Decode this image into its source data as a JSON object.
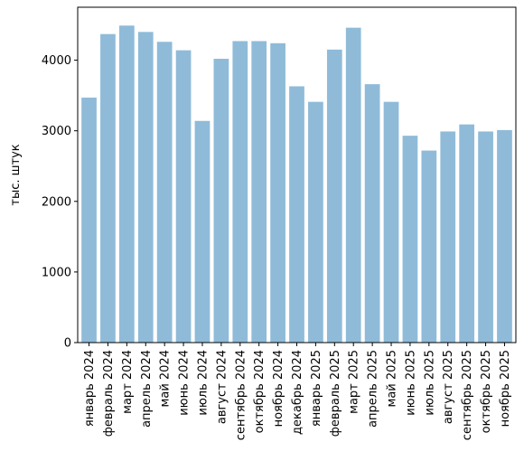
{
  "chart_data": {
    "type": "bar",
    "title": "",
    "xlabel": "",
    "ylabel": "тыс. штук",
    "ylim": [
      0,
      4750
    ],
    "yticks": [
      0,
      1000,
      2000,
      3000,
      4000
    ],
    "grid": false,
    "bar_color": "#8fbbd9",
    "categories": [
      "январь 2024",
      "февраль 2024",
      "март 2024",
      "апрель 2024",
      "май 2024",
      "июнь 2024",
      "июль 2024",
      "август 2024",
      "сентябрь 2024",
      "октябрь 2024",
      "ноябрь 2024",
      "декабрь 2024",
      "январь 2025",
      "февраль 2025",
      "март 2025",
      "апрель 2025",
      "май 2025",
      "июнь 2025",
      "июль 2025",
      "август 2025",
      "сентябрь 2025",
      "октябрь 2025",
      "ноябрь 2025"
    ],
    "values": [
      3470,
      4370,
      4490,
      4400,
      4260,
      4140,
      3140,
      4020,
      4270,
      4270,
      4240,
      3630,
      3410,
      4150,
      4460,
      3660,
      3410,
      2930,
      2720,
      2990,
      3090,
      2990,
      3010
    ]
  }
}
